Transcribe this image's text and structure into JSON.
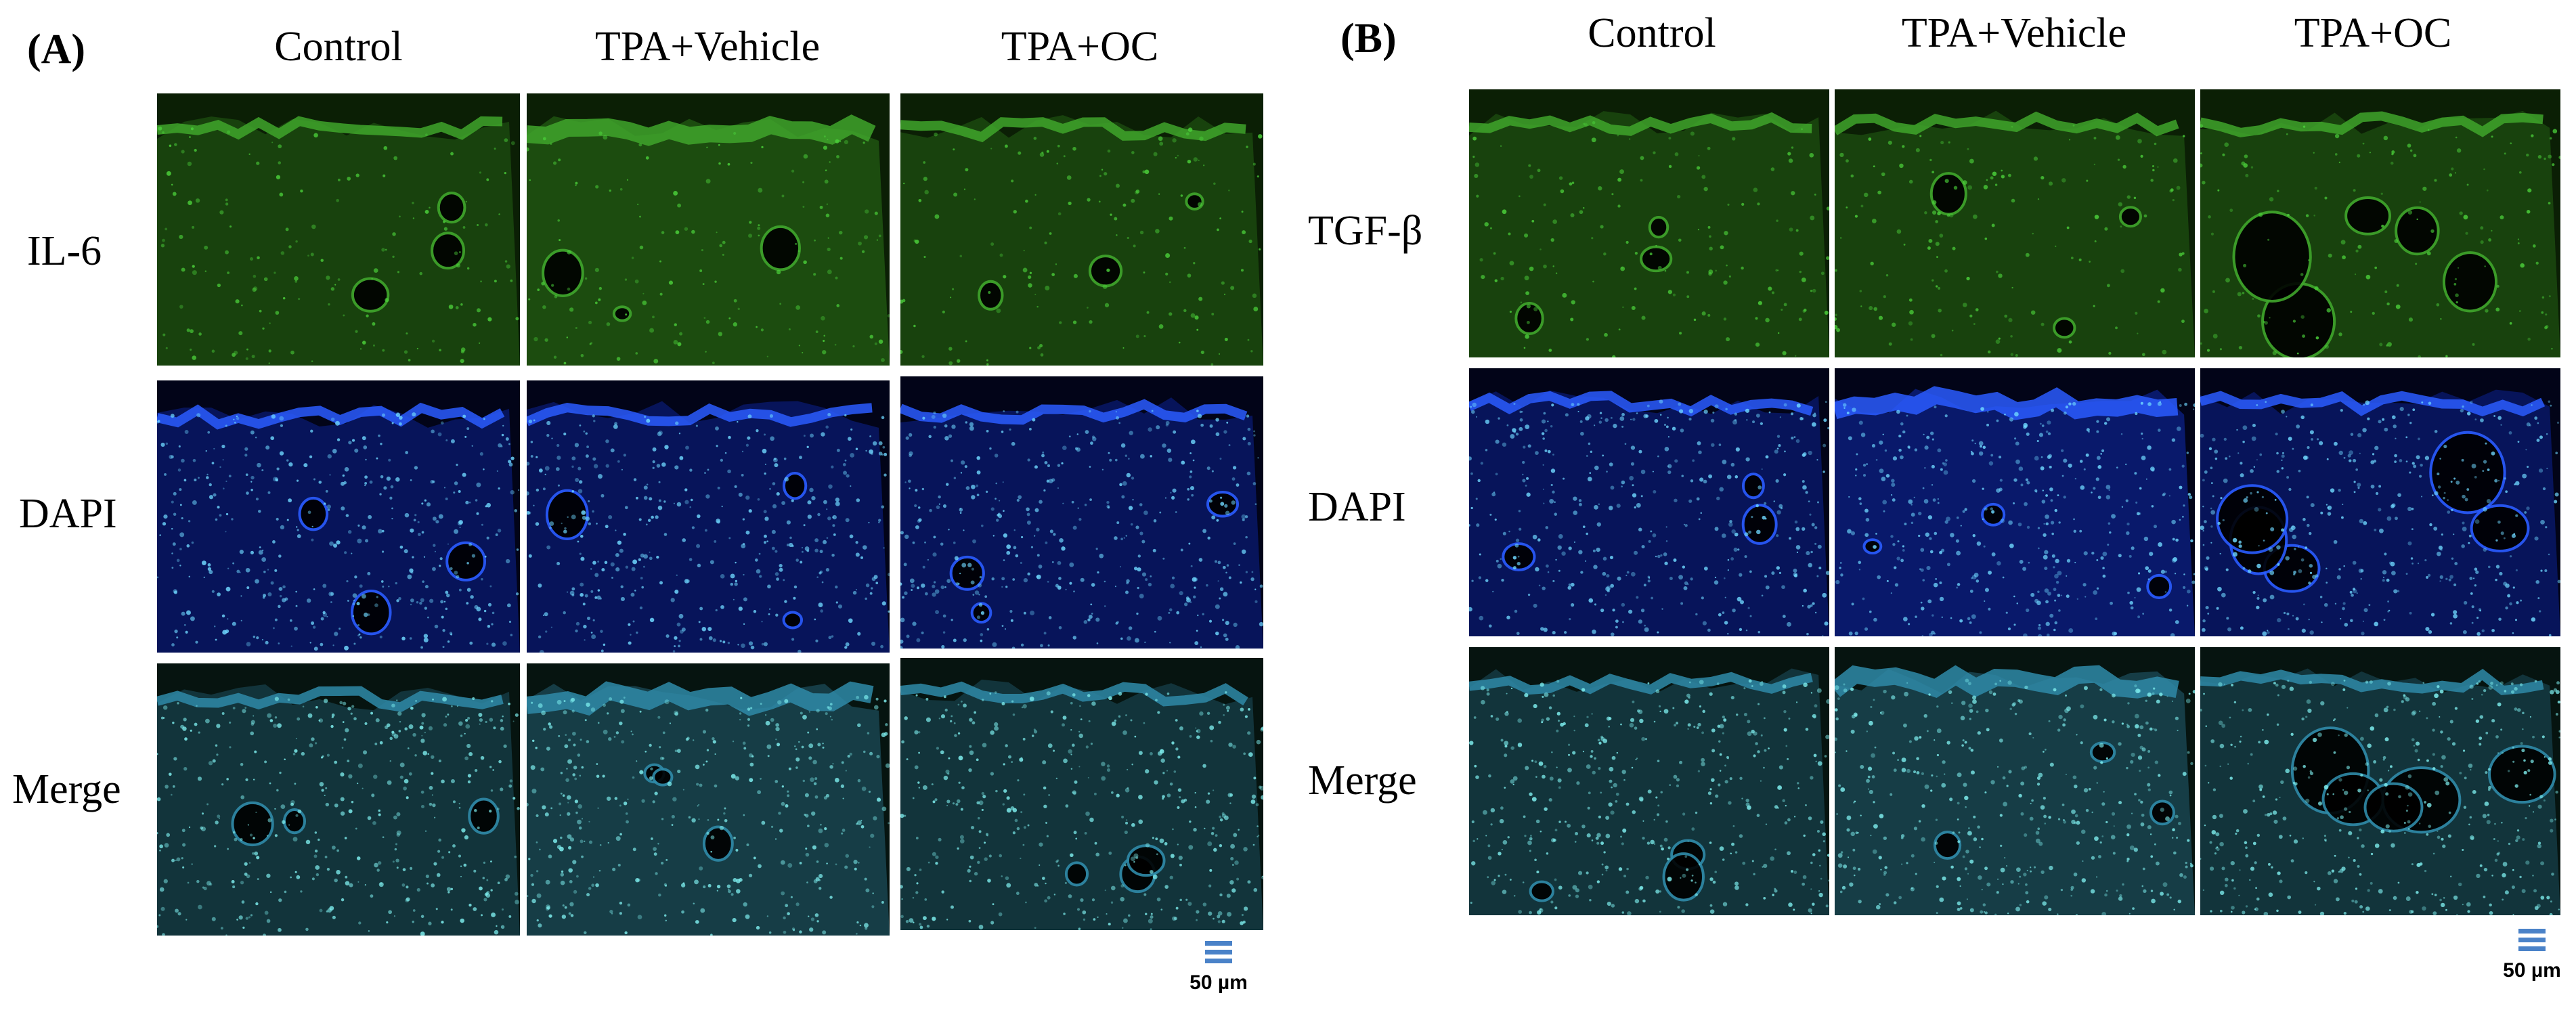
{
  "colors": {
    "background": "#ffffff",
    "gfp_green": "#2fa82b",
    "dapi_blue": "#2a5cff",
    "scale_icon": "#4a82c8"
  },
  "panels": [
    {
      "label": "(A)",
      "columns": [
        "Control",
        "TPA+Vehicle",
        "TPA+OC"
      ],
      "rows": [
        "IL-6",
        "DAPI",
        "Merge"
      ],
      "scale_bar": "50 µm",
      "scale_icon": "menu-lines-icon"
    },
    {
      "label": "(B)",
      "columns": [
        "Control",
        "TPA+Vehicle",
        "TPA+OC"
      ],
      "rows": [
        "TGF-β",
        "DAPI",
        "Merge"
      ],
      "scale_bar": "50 µm",
      "scale_icon": "menu-lines-icon"
    }
  ]
}
